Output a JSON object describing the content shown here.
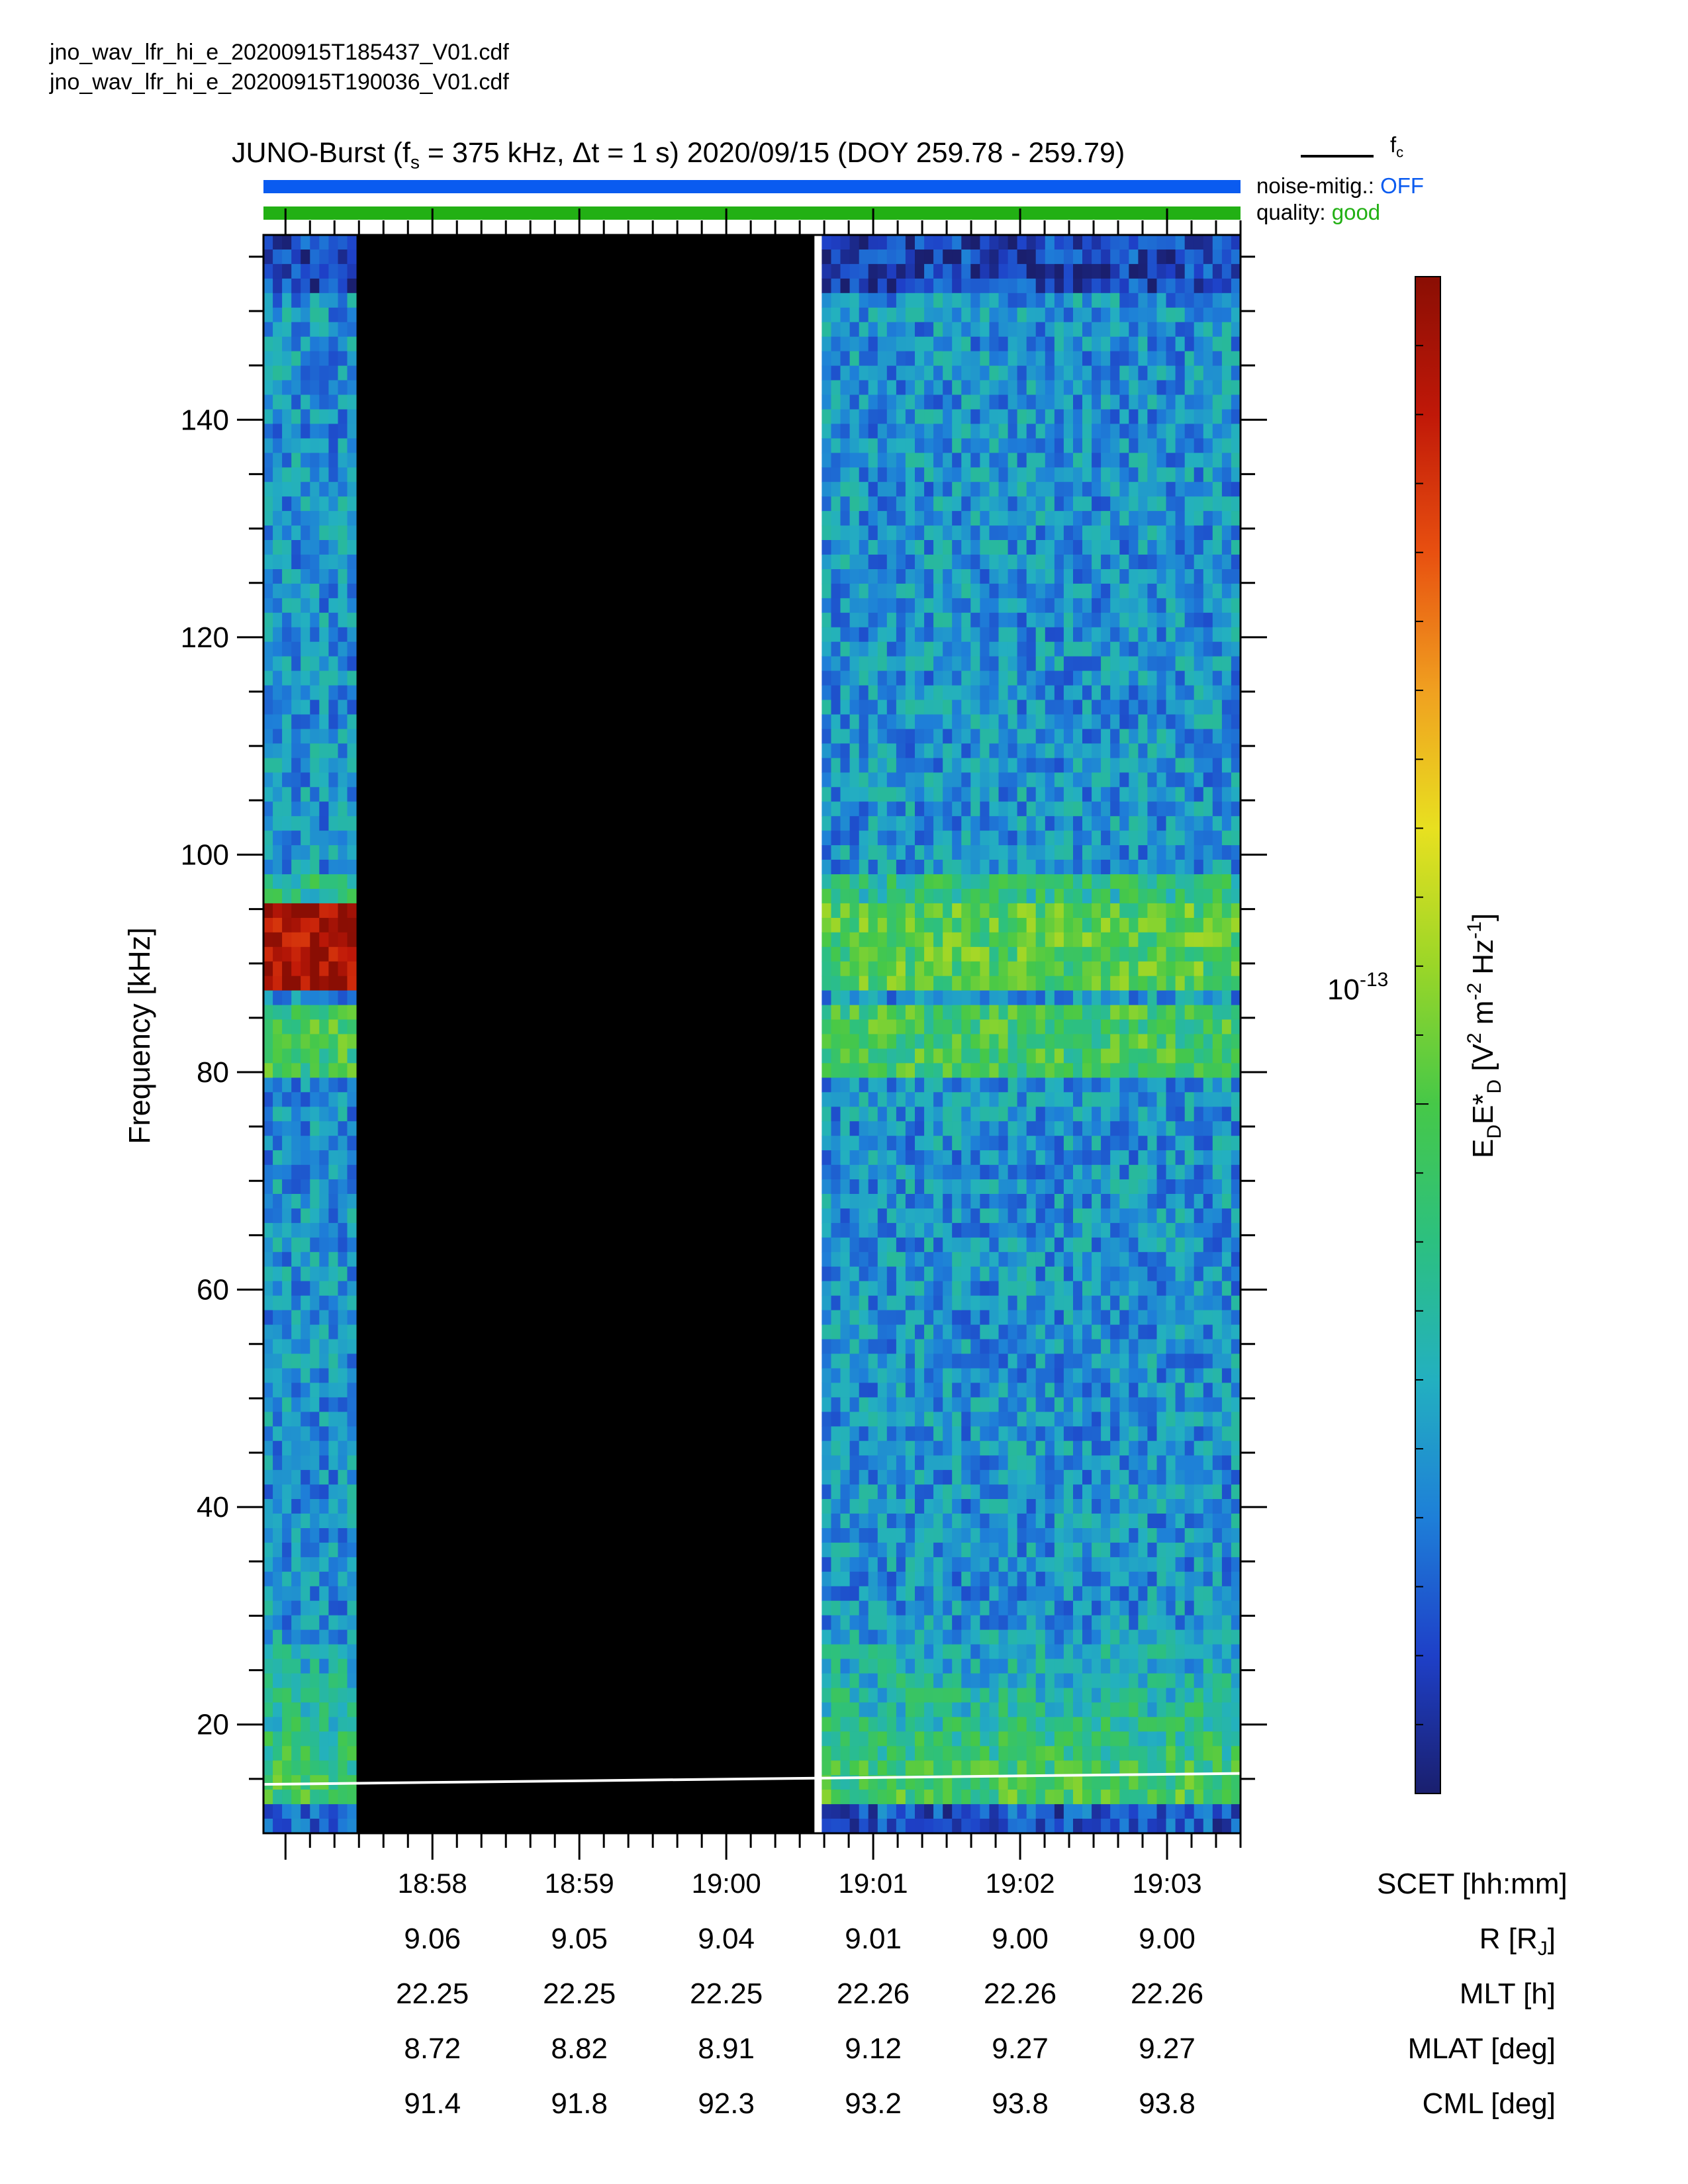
{
  "files": [
    "jno_wav_lfr_hi_e_20200915T185437_V01.cdf",
    "jno_wav_lfr_hi_e_20200915T190036_V01.cdf"
  ],
  "title": {
    "prefix": "JUNO-Burst (f",
    "sub_s": "s",
    "mid": " = 375 kHz, Δt = 1 s)  2020/09/15 (DOY 259.78 - 259.79)"
  },
  "legend": {
    "fc_label": "f",
    "fc_sub": "c",
    "noise_label": "noise-mitig.:",
    "noise_value": "OFF",
    "quality_label": "quality:",
    "quality_value": "good",
    "noise_color": "#0a5bf0",
    "quality_color": "#22b014"
  },
  "chart_data": {
    "type": "heatmap",
    "ylabel": "Frequency [kHz]",
    "ylim": [
      10,
      157
    ],
    "yticks": [
      20,
      40,
      60,
      80,
      100,
      120,
      140
    ],
    "colorbar": {
      "label_main": "E",
      "label_sub1": "D",
      "label_mid": "E*",
      "label_sub2": "D",
      "label_units": " [V",
      "label_sup1": "2",
      "label_m": " m",
      "label_sup2": "-2",
      "label_hz": " Hz",
      "label_sup3": "-1",
      "label_end": "]",
      "tick_base": "10",
      "tick_exp": "-13",
      "colors": [
        "#1a1f6e",
        "#1e40c8",
        "#1e7fd8",
        "#23b0c0",
        "#2cc080",
        "#46c848",
        "#9ad628",
        "#e8e020",
        "#f0a020",
        "#e85010",
        "#c01808",
        "#8a0e04"
      ]
    },
    "x_labels": {
      "axis": "SCET [hh:mm]",
      "ticks": [
        "18:58",
        "18:59",
        "19:00",
        "19:01",
        "19:02",
        "19:03"
      ]
    },
    "data_gap": {
      "start": "18:57:29",
      "end": "19:00:36"
    },
    "features": [
      {
        "name": "strong band",
        "freq_range_khz": [
          87,
          95
        ]
      },
      {
        "name": "moderate band",
        "freq_range_khz": [
          80,
          86
        ]
      }
    ],
    "fc_line": {
      "start_khz": 14.5,
      "end_khz": 15.5
    }
  },
  "ephemeris": [
    {
      "label": "R [R",
      "label_sub": "J",
      "label_end": "]",
      "values": [
        "9.06",
        "9.05",
        "9.04",
        "9.01",
        "9.00",
        "9.00"
      ]
    },
    {
      "label": "MLT [h]",
      "label_sub": "",
      "label_end": "",
      "values": [
        "22.25",
        "22.25",
        "22.25",
        "22.26",
        "22.26",
        "22.26"
      ]
    },
    {
      "label": "MLAT [deg]",
      "label_sub": "",
      "label_end": "",
      "values": [
        "8.72",
        "8.82",
        "8.91",
        "9.12",
        "9.27",
        "9.27"
      ]
    },
    {
      "label": "CML [deg]",
      "label_sub": "",
      "label_end": "",
      "values": [
        "91.4",
        "91.8",
        "92.3",
        "93.2",
        "93.8",
        "93.8"
      ]
    }
  ]
}
